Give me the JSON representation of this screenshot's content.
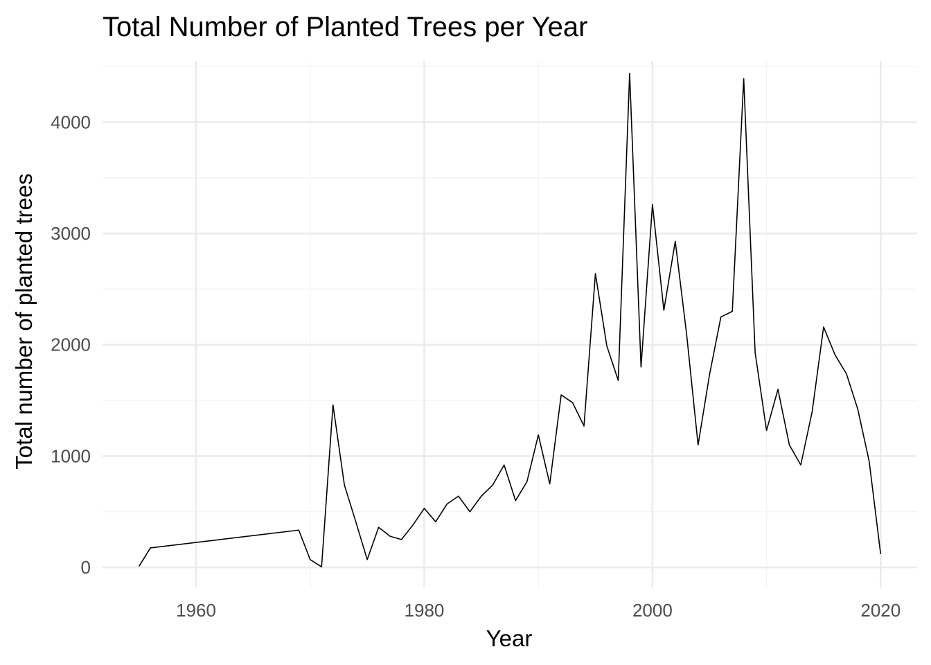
{
  "chart_data": {
    "type": "line",
    "title": "Total Number of Planted Trees per Year",
    "xlabel": "Year",
    "ylabel": "Total number of planted trees",
    "xlim": [
      1951.8,
      2023.2
    ],
    "ylim": [
      -180,
      4550
    ],
    "x_ticks": [
      1960,
      1980,
      2000,
      2020
    ],
    "y_ticks": [
      0,
      1000,
      2000,
      3000,
      4000
    ],
    "grid": true,
    "legend": "none",
    "series": [
      {
        "color": "#000000",
        "points": [
          [
            1955,
            10
          ],
          [
            1956,
            175
          ],
          [
            1969,
            335
          ],
          [
            1970,
            70
          ],
          [
            1971,
            5
          ],
          [
            1972,
            1460
          ],
          [
            1973,
            740
          ],
          [
            1974,
            410
          ],
          [
            1975,
            70
          ],
          [
            1976,
            360
          ],
          [
            1977,
            280
          ],
          [
            1978,
            250
          ],
          [
            1979,
            380
          ],
          [
            1980,
            530
          ],
          [
            1981,
            410
          ],
          [
            1982,
            570
          ],
          [
            1983,
            640
          ],
          [
            1984,
            500
          ],
          [
            1985,
            640
          ],
          [
            1986,
            740
          ],
          [
            1987,
            920
          ],
          [
            1988,
            600
          ],
          [
            1989,
            770
          ],
          [
            1990,
            1190
          ],
          [
            1991,
            750
          ],
          [
            1992,
            1550
          ],
          [
            1993,
            1480
          ],
          [
            1994,
            1270
          ],
          [
            1995,
            2640
          ],
          [
            1996,
            1990
          ],
          [
            1997,
            1680
          ],
          [
            1998,
            4440
          ],
          [
            1999,
            1800
          ],
          [
            2000,
            3260
          ],
          [
            2001,
            2310
          ],
          [
            2002,
            2930
          ],
          [
            2003,
            2090
          ],
          [
            2004,
            1100
          ],
          [
            2005,
            1730
          ],
          [
            2006,
            2250
          ],
          [
            2007,
            2300
          ],
          [
            2008,
            4390
          ],
          [
            2009,
            1930
          ],
          [
            2010,
            1230
          ],
          [
            2011,
            1600
          ],
          [
            2012,
            1100
          ],
          [
            2013,
            920
          ],
          [
            2014,
            1400
          ],
          [
            2015,
            2160
          ],
          [
            2016,
            1910
          ],
          [
            2017,
            1740
          ],
          [
            2018,
            1420
          ],
          [
            2019,
            950
          ],
          [
            2020,
            120
          ]
        ]
      }
    ]
  }
}
